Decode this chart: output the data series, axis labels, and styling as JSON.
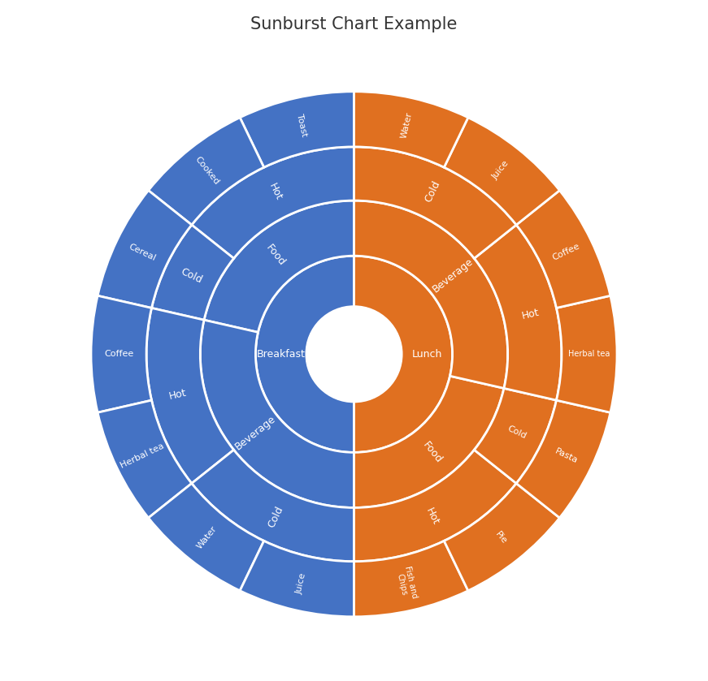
{
  "title": "Sunburst Chart Example",
  "title_fontsize": 15,
  "background_color": "#ffffff",
  "colors": {
    "blue": "#4472C4",
    "orange": "#E07020"
  },
  "ring_radii": [
    0.155,
    0.32,
    0.5,
    0.675,
    0.855
  ],
  "text_color": "#ffffff",
  "wedge_linewidth": 2.0,
  "wedge_edgecolor": "#ffffff",
  "segments": {
    "breakfast": {
      "color": "blue",
      "theta1": 90,
      "theta2": 270,
      "label": "Breakfast",
      "label_fontsize": 9,
      "children": {
        "food": {
          "label": "Food",
          "label_fontsize": 9,
          "leaves": 3,
          "children": {
            "hot": {
              "label": "Hot",
              "label_fontsize": 9,
              "leaves": 2,
              "children": {
                "toast": {
                  "label": "Toast",
                  "leaves": 1
                },
                "cooked": {
                  "label": "Cooked",
                  "leaves": 1
                }
              }
            },
            "cold": {
              "label": "Cold",
              "label_fontsize": 9,
              "leaves": 1,
              "children": {
                "cereal": {
                  "label": "Cereal",
                  "leaves": 1
                }
              }
            }
          }
        },
        "beverage": {
          "label": "Beverage",
          "label_fontsize": 9,
          "leaves": 4,
          "children": {
            "hot": {
              "label": "Hot",
              "label_fontsize": 9,
              "leaves": 2,
              "children": {
                "coffee": {
                  "label": "Coffee",
                  "leaves": 1
                },
                "herbal": {
                  "label": "Herbal tea",
                  "leaves": 1
                }
              }
            },
            "cold": {
              "label": "Cold",
              "label_fontsize": 9,
              "leaves": 2,
              "children": {
                "water": {
                  "label": "Water",
                  "leaves": 1
                },
                "juice": {
                  "label": "Juice",
                  "leaves": 1
                }
              }
            }
          }
        }
      }
    },
    "lunch": {
      "color": "orange",
      "theta1": -90,
      "theta2": 90,
      "label": "Lunch",
      "label_fontsize": 9,
      "children": {
        "beverage": {
          "label": "Beverage",
          "label_fontsize": 9,
          "leaves": 4,
          "children": {
            "cold": {
              "label": "Cold",
              "label_fontsize": 9,
              "leaves": 2,
              "children": {
                "water": {
                  "label": "Water",
                  "leaves": 1
                },
                "juice": {
                  "label": "Juice",
                  "leaves": 1
                }
              }
            },
            "hot": {
              "label": "Hot",
              "label_fontsize": 9,
              "leaves": 2,
              "children": {
                "coffee": {
                  "label": "Coffee",
                  "leaves": 1
                },
                "herbal": {
                  "label": "Herbal tea",
                  "leaves": 1
                }
              }
            }
          }
        },
        "food": {
          "label": "Food",
          "label_fontsize": 9,
          "leaves": 3,
          "children": {
            "hot": {
              "label": "Hot",
              "label_fontsize": 9,
              "leaves": 2,
              "children": {
                "fishnchips": {
                  "label": "Fish and\nChips",
                  "leaves": 1
                },
                "pie": {
                  "label": "Pie",
                  "leaves": 1
                }
              }
            },
            "cold": {
              "label": "Cold",
              "label_fontsize": 8,
              "leaves": 1,
              "children": {
                "pasta": {
                  "label": "Pasta",
                  "leaves": 1
                }
              }
            }
          }
        }
      }
    }
  }
}
